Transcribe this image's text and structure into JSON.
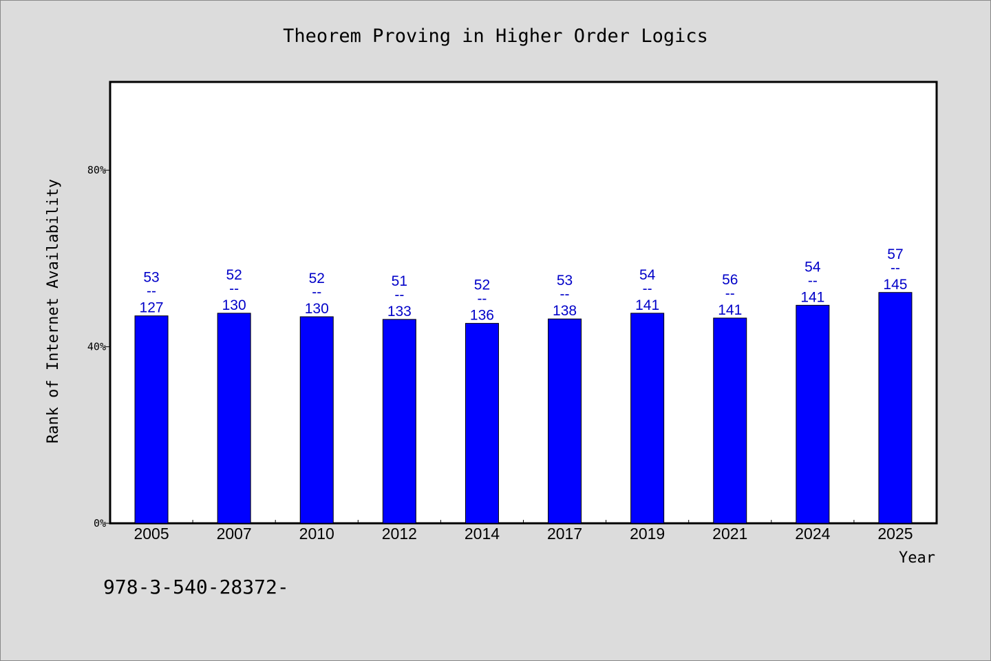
{
  "chart_data": {
    "type": "bar",
    "title": "Theorem Proving in Higher Order Logics",
    "xlabel": "Year",
    "ylabel": "Rank of Internet Availability",
    "ylim": [
      0,
      100
    ],
    "yticks": [
      {
        "value": 0,
        "label": "0%"
      },
      {
        "value": 40,
        "label": "40%"
      },
      {
        "value": 80,
        "label": "80%"
      }
    ],
    "categories": [
      "2005",
      "2007",
      "2010",
      "2012",
      "2014",
      "2017",
      "2019",
      "2021",
      "2024",
      "2025"
    ],
    "values": [
      47,
      47.6,
      46.8,
      46.2,
      45.3,
      46.3,
      47.6,
      46.5,
      49.4,
      52.3
    ],
    "data_labels": [
      {
        "top": "53",
        "sep": "--",
        "bottom": "127"
      },
      {
        "top": "52",
        "sep": "--",
        "bottom": "130"
      },
      {
        "top": "52",
        "sep": "--",
        "bottom": "130"
      },
      {
        "top": "51",
        "sep": "--",
        "bottom": "133"
      },
      {
        "top": "52",
        "sep": "--",
        "bottom": "136"
      },
      {
        "top": "53",
        "sep": "--",
        "bottom": "138"
      },
      {
        "top": "54",
        "sep": "--",
        "bottom": "141"
      },
      {
        "top": "56",
        "sep": "--",
        "bottom": "141"
      },
      {
        "top": "54",
        "sep": "--",
        "bottom": "141"
      },
      {
        "top": "57",
        "sep": "--",
        "bottom": "145"
      }
    ],
    "grid": false,
    "colors": {
      "bar": "#0000ff",
      "label": "#0000c8",
      "background": "#dcdcdc",
      "plot_background": "#ffffff"
    }
  },
  "footer": {
    "text": "978-3-540-28372-"
  }
}
